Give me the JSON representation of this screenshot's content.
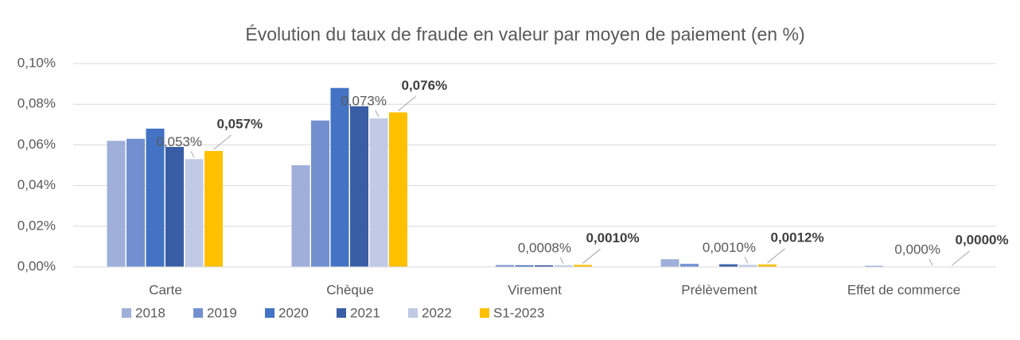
{
  "chart_data": {
    "type": "bar",
    "title": "Évolution du taux de fraude en valeur par moyen de paiement (en %)",
    "categories": [
      "Carte",
      "Chèque",
      "Virement",
      "Prélèvement",
      "Effet de commerce"
    ],
    "series": [
      {
        "name": "2018",
        "color": "#9fafda",
        "values": [
          0.062,
          0.05,
          0,
          0.0038,
          0
        ]
      },
      {
        "name": "2019",
        "color": "#7290d0",
        "values": [
          0.063,
          0.072,
          0.0009,
          0.0015,
          0.0005
        ]
      },
      {
        "name": "2020",
        "color": "#4472c4",
        "values": [
          0.068,
          0.088,
          0.0008,
          0,
          0
        ]
      },
      {
        "name": "2021",
        "color": "#3a5ea5",
        "values": [
          0.059,
          0.079,
          0.0008,
          0.0013,
          0
        ]
      },
      {
        "name": "2022",
        "color": "#c0cae6",
        "values": [
          0.053,
          0.073,
          0.0008,
          0.001,
          0
        ],
        "value_labels": [
          "0,053%",
          "0,073%",
          "0,0008%",
          "0,0010%",
          "0,000%"
        ]
      },
      {
        "name": "S1-2023",
        "color": "#ffc000",
        "values": [
          0.057,
          0.076,
          0.001,
          0.0012,
          0
        ],
        "value_labels": [
          "0,057%",
          "0,076%",
          "0,0010%",
          "0,0012%",
          "0,0000%"
        ]
      }
    ],
    "ylim": [
      0,
      0.1
    ],
    "yticks": [
      {
        "value": 0,
        "label": "0,00%"
      },
      {
        "value": 0.02,
        "label": "0,02%"
      },
      {
        "value": 0.04,
        "label": "0,04%"
      },
      {
        "value": 0.06,
        "label": "0,06%"
      },
      {
        "value": 0.08,
        "label": "0,08%"
      },
      {
        "value": 0.1,
        "label": "0,10%"
      }
    ],
    "grid": true,
    "legend": "bottom"
  }
}
